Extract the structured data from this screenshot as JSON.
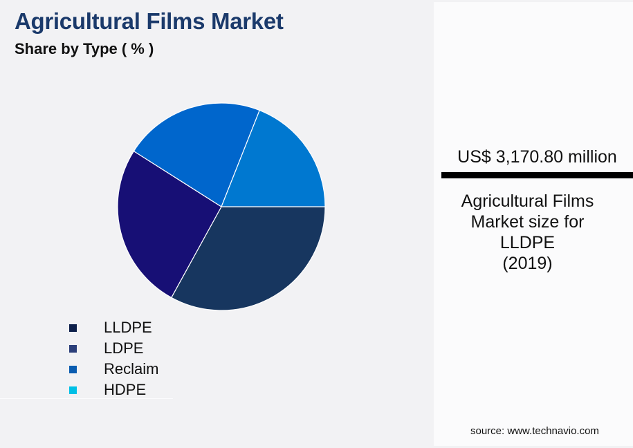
{
  "header": {
    "title": "Agricultural Films Market",
    "subtitle": "Share by Type ( % )"
  },
  "legend": {
    "items": [
      {
        "label": "LLDPE",
        "color": "#0d1f4a"
      },
      {
        "label": "LDPE",
        "color": "#2c3f7a"
      },
      {
        "label": "Reclaim",
        "color": "#0a5cb0"
      },
      {
        "label": "HDPE",
        "color": "#00c0e6"
      }
    ]
  },
  "kpi": {
    "value": "US$ 3,170.80 million",
    "caption_lines": [
      "Agricultural Films",
      "Market size for",
      "LLDPE",
      "(2019)"
    ]
  },
  "footer": {
    "source": "source: www.technavio.com"
  },
  "chart_data": {
    "type": "pie",
    "title": "Agricultural Films Market",
    "subtitle": "Share by Type ( % )",
    "categories": [
      "LLDPE",
      "LDPE",
      "Reclaim",
      "HDPE"
    ],
    "values": [
      33,
      26,
      22,
      19
    ],
    "slice_colors": [
      "#17365f",
      "#170f75",
      "#0066cc",
      "#0078d0"
    ],
    "legend_position": "bottom-left",
    "annotation": "US$ 3,170.80 million — Agricultural Films Market size for LLDPE (2019)"
  }
}
